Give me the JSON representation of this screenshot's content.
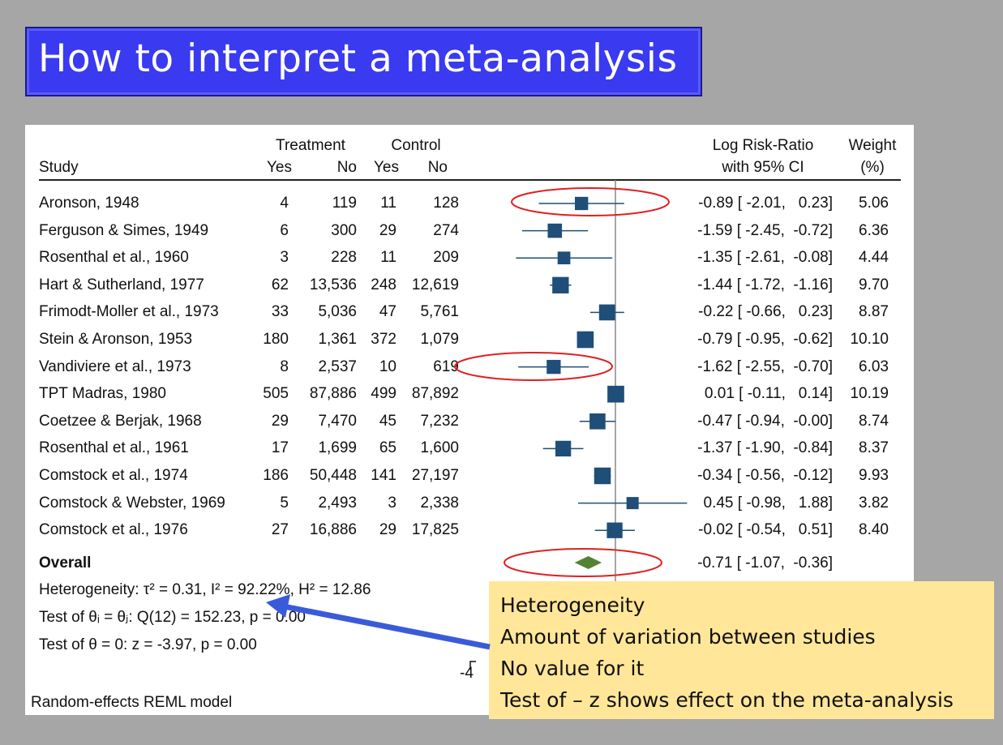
{
  "slide": {
    "title": "How to interpret a meta-analysis",
    "colors": {
      "background": "#a6a6a6",
      "title_bg": "#3a3af0",
      "marker": "#1f4e79",
      "diamond": "#548235",
      "ellipse": "#e02020",
      "callout_bg": "#ffe699",
      "arrow": "#3a5bd9"
    }
  },
  "table": {
    "headers": {
      "study": "Study",
      "treatment": "Treatment",
      "control": "Control",
      "yes": "Yes",
      "no": "No",
      "effect_line1": "Log Risk-Ratio",
      "effect_line2": "with 95% CI",
      "weight_line1": "Weight",
      "weight_line2": "(%)"
    },
    "rows": [
      {
        "study": "Aronson, 1948",
        "t_yes": "4",
        "t_no": "119",
        "c_yes": "11",
        "c_no": "128",
        "effect": "-0.89 [ -2.01,   0.23]",
        "weight": "5.06"
      },
      {
        "study": "Ferguson & Simes, 1949",
        "t_yes": "6",
        "t_no": "300",
        "c_yes": "29",
        "c_no": "274",
        "effect": "-1.59 [ -2.45,  -0.72]",
        "weight": "6.36"
      },
      {
        "study": "Rosenthal et al., 1960",
        "t_yes": "3",
        "t_no": "228",
        "c_yes": "11",
        "c_no": "209",
        "effect": "-1.35 [ -2.61,  -0.08]",
        "weight": "4.44"
      },
      {
        "study": "Hart & Sutherland, 1977",
        "t_yes": "62",
        "t_no": "13,536",
        "c_yes": "248",
        "c_no": "12,619",
        "effect": "-1.44 [ -1.72,  -1.16]",
        "weight": "9.70"
      },
      {
        "study": "Frimodt-Moller et al., 1973",
        "t_yes": "33",
        "t_no": "5,036",
        "c_yes": "47",
        "c_no": "5,761",
        "effect": "-0.22 [ -0.66,   0.23]",
        "weight": "8.87"
      },
      {
        "study": "Stein & Aronson, 1953",
        "t_yes": "180",
        "t_no": "1,361",
        "c_yes": "372",
        "c_no": "1,079",
        "effect": "-0.79 [ -0.95,  -0.62]",
        "weight": "10.10"
      },
      {
        "study": "Vandiviere et al., 1973",
        "t_yes": "8",
        "t_no": "2,537",
        "c_yes": "10",
        "c_no": "619",
        "effect": "-1.62 [ -2.55,  -0.70]",
        "weight": "6.03"
      },
      {
        "study": "TPT Madras, 1980",
        "t_yes": "505",
        "t_no": "87,886",
        "c_yes": "499",
        "c_no": "87,892",
        "effect": "0.01 [ -0.11,   0.14]",
        "weight": "10.19"
      },
      {
        "study": "Coetzee & Berjak, 1968",
        "t_yes": "29",
        "t_no": "7,470",
        "c_yes": "45",
        "c_no": "7,232",
        "effect": "-0.47 [ -0.94,  -0.00]",
        "weight": "8.74"
      },
      {
        "study": "Rosenthal et al., 1961",
        "t_yes": "17",
        "t_no": "1,699",
        "c_yes": "65",
        "c_no": "1,600",
        "effect": "-1.37 [ -1.90,  -0.84]",
        "weight": "8.37"
      },
      {
        "study": "Comstock et al., 1974",
        "t_yes": "186",
        "t_no": "50,448",
        "c_yes": "141",
        "c_no": "27,197",
        "effect": "-0.34 [ -0.56,  -0.12]",
        "weight": "9.93"
      },
      {
        "study": "Comstock & Webster, 1969",
        "t_yes": "5",
        "t_no": "2,493",
        "c_yes": "3",
        "c_no": "2,338",
        "effect": "0.45 [ -0.98,   1.88]",
        "weight": "3.82"
      },
      {
        "study": "Comstock et al., 1976",
        "t_yes": "27",
        "t_no": "16,886",
        "c_yes": "29",
        "c_no": "17,825",
        "effect": "-0.02 [ -0.54,   0.51]",
        "weight": "8.40"
      }
    ],
    "overall_label": "Overall",
    "overall_effect": "-0.71 [ -1.07,  -0.36]",
    "heterogeneity": "Heterogeneity: τ² = 0.31, I² = 92.22%, H² = 12.86",
    "test_theta_i": "Test of θᵢ = θⱼ: Q(12) = 152.23, p = 0.00",
    "test_theta": "Test of θ = 0: z = -3.97, p = 0.00",
    "axis_tick": "-4",
    "model": "Random-effects REML model"
  },
  "chart_data": {
    "type": "forest",
    "x_null_value": 0,
    "xlim": [
      -2.9,
      2.2
    ],
    "studies": [
      {
        "name": "Aronson, 1948",
        "est": -0.89,
        "lo": -2.01,
        "hi": 0.23,
        "weight": 5.06
      },
      {
        "name": "Ferguson & Simes, 1949",
        "est": -1.59,
        "lo": -2.45,
        "hi": -0.72,
        "weight": 6.36
      },
      {
        "name": "Rosenthal et al., 1960",
        "est": -1.35,
        "lo": -2.61,
        "hi": -0.08,
        "weight": 4.44
      },
      {
        "name": "Hart & Sutherland, 1977",
        "est": -1.44,
        "lo": -1.72,
        "hi": -1.16,
        "weight": 9.7
      },
      {
        "name": "Frimodt-Moller et al., 1973",
        "est": -0.22,
        "lo": -0.66,
        "hi": 0.23,
        "weight": 8.87
      },
      {
        "name": "Stein & Aronson, 1953",
        "est": -0.79,
        "lo": -0.95,
        "hi": -0.62,
        "weight": 10.1
      },
      {
        "name": "Vandiviere et al., 1973",
        "est": -1.62,
        "lo": -2.55,
        "hi": -0.7,
        "weight": 6.03
      },
      {
        "name": "TPT Madras, 1980",
        "est": 0.01,
        "lo": -0.11,
        "hi": 0.14,
        "weight": 10.19
      },
      {
        "name": "Coetzee & Berjak, 1968",
        "est": -0.47,
        "lo": -0.94,
        "hi": -0.0,
        "weight": 8.74
      },
      {
        "name": "Rosenthal et al., 1961",
        "est": -1.37,
        "lo": -1.9,
        "hi": -0.84,
        "weight": 8.37
      },
      {
        "name": "Comstock et al., 1974",
        "est": -0.34,
        "lo": -0.56,
        "hi": -0.12,
        "weight": 9.93
      },
      {
        "name": "Comstock & Webster, 1969",
        "est": 0.45,
        "lo": -0.98,
        "hi": 1.88,
        "weight": 3.82
      },
      {
        "name": "Comstock et al., 1976",
        "est": -0.02,
        "lo": -0.54,
        "hi": 0.51,
        "weight": 8.4
      }
    ],
    "overall": {
      "est": -0.71,
      "lo": -1.07,
      "hi": -0.36
    },
    "highlighted_rows": [
      0,
      6
    ],
    "highlight_overall": true
  },
  "callout": {
    "lines": [
      "Heterogeneity",
      "Amount of variation between studies",
      "No value for it",
      "Test of – z  shows effect on the meta-analysis"
    ]
  }
}
